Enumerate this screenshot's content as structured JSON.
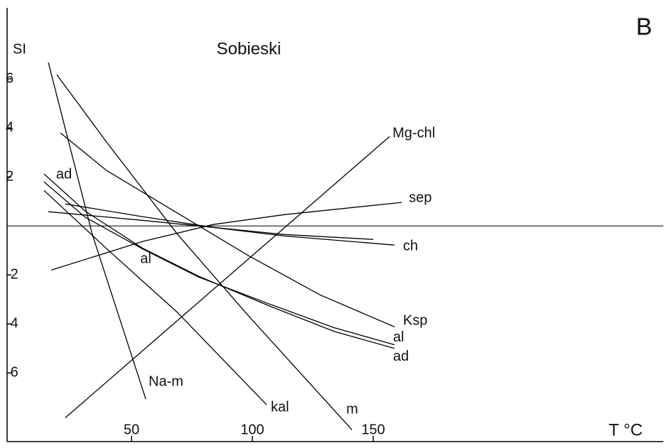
{
  "chart_data": {
    "type": "line",
    "title": "Sobieski",
    "panel": "B",
    "ylabel": "SI",
    "xlabel": "T °C",
    "xlim": [
      0,
      270
    ],
    "ylim": [
      -8.8,
      8.9
    ],
    "xticks": [
      50,
      100,
      150
    ],
    "yticks": [
      6,
      4,
      2,
      -2,
      -4,
      -6
    ],
    "reference_line": 0,
    "line_color": "#000000",
    "series": [
      {
        "name": "Mg-chl",
        "x": [
          22.6,
          156.8
        ],
        "values": [
          -7.83,
          3.65
        ]
      },
      {
        "name": "sep",
        "x": [
          16.8,
          54.4,
          83.8,
          113.2,
          161.8
        ],
        "values": [
          -1.8,
          -0.64,
          0.06,
          0.46,
          0.96
        ]
      },
      {
        "name": "ch",
        "x": [
          15.6,
          54.4,
          83.8,
          113.2,
          158.8
        ],
        "values": [
          0.58,
          0.23,
          -0.06,
          -0.41,
          -0.78
        ]
      },
      {
        "x": [
          22.6,
          54.4,
          83.8,
          113.2,
          150
        ],
        "values": [
          0.9,
          0.38,
          -0.06,
          -0.35,
          -0.55
        ]
      },
      {
        "name": "Ksp",
        "x": [
          20.6,
          39.7,
          69.1,
          98.5,
          127.9,
          158.8
        ],
        "values": [
          3.8,
          2.26,
          0.52,
          -1.22,
          -2.81,
          -4.12
        ]
      },
      {
        "name": "al",
        "x": [
          13.8,
          30.9,
          54.4,
          77.9,
          107.4,
          133.8,
          158.8
        ],
        "values": [
          1.8,
          0.35,
          -0.93,
          -2.09,
          -3.2,
          -4.15,
          -4.85
        ]
      },
      {
        "name": "ad",
        "x": [
          13.8,
          30.9,
          54.4,
          77.9,
          107.4,
          133.8,
          158.8
        ],
        "values": [
          2.12,
          0.6,
          -0.9,
          -2.06,
          -3.28,
          -4.3,
          -5.0
        ]
      },
      {
        "name": "kal",
        "x": [
          13.8,
          39.7,
          69.1,
          105.9
        ],
        "values": [
          1.45,
          -0.93,
          -3.54,
          -7.3
        ]
      },
      {
        "name": "m",
        "x": [
          19.1,
          39.7,
          69.1,
          98.5,
          141.2
        ],
        "values": [
          6.17,
          3.42,
          -0.35,
          -3.68,
          -8.32
        ]
      },
      {
        "name": "Na-m",
        "x": [
          15.6,
          33.8,
          55.9
        ],
        "values": [
          6.67,
          -0.35,
          -7.07
        ]
      }
    ]
  }
}
